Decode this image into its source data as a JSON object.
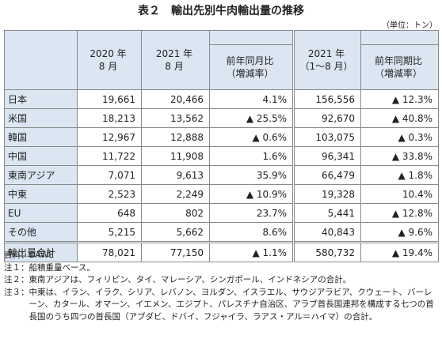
{
  "header": {
    "title": "表２　輸出先別牛肉輸出量の推移",
    "unit": "（単位：トン）"
  },
  "table": {
    "columns": [
      [
        "2020 年",
        "8 月"
      ],
      [
        "2021 年",
        "8 月"
      ],
      [
        "前年同月比",
        "（増減率）"
      ],
      [
        "2021 年",
        "（1〜8 月）"
      ],
      [
        "前年同期比",
        "（増減率）"
      ]
    ],
    "rows": [
      [
        "日本",
        "19,661",
        "20,466",
        "4.1%",
        "156,556",
        "▲ 12.3%"
      ],
      [
        "米国",
        "18,213",
        "13,562",
        "▲ 25.5%",
        "92,670",
        "▲ 40.8%"
      ],
      [
        "韓国",
        "12,967",
        "12,888",
        "▲ 0.6%",
        "103,075",
        "▲ 0.3%"
      ],
      [
        "中国",
        "11,722",
        "11,908",
        "1.6%",
        "96,341",
        "▲ 33.8%"
      ],
      [
        "東南アジア",
        "7,071",
        "9,613",
        "35.9%",
        "66,479",
        "▲ 1.8%"
      ],
      [
        "中東",
        "2,523",
        "2,249",
        "▲ 10.9%",
        "19,328",
        "10.4%"
      ],
      [
        "EU",
        "648",
        "802",
        "23.7%",
        "5,441",
        "▲ 12.8%"
      ],
      [
        "その他",
        "5,215",
        "5,662",
        "8.6%",
        "40,843",
        "▲ 9.6%"
      ],
      [
        "輸出量合計",
        "78,021",
        "77,150",
        "▲ 1.1%",
        "580,732",
        "▲ 19.4%"
      ]
    ]
  },
  "notes": [
    {
      "label": "資料：",
      "text": "DAWE"
    },
    {
      "label": "注１：",
      "text": "船積重量ベース。"
    },
    {
      "label": "注２：",
      "text": "東南アジアは、フィリピン、タイ、マレーシア、シンガポール、インドネシアの合計。"
    },
    {
      "label": "注３：",
      "text": "中東は、イラン、イラク、シリア、レバノン、ヨルダン、イスラエル、サウジアラビア、クウェート、バーレーン、カタール、オマーン、イエメン、エジプト、パレスチナ自治区、アラブ首長国連邦を構成する七つの首長国のうち四つの首長国（アブダビ、ドバイ、フジャイラ、ラアス・アル＝ハイマ）の合計。"
    }
  ]
}
